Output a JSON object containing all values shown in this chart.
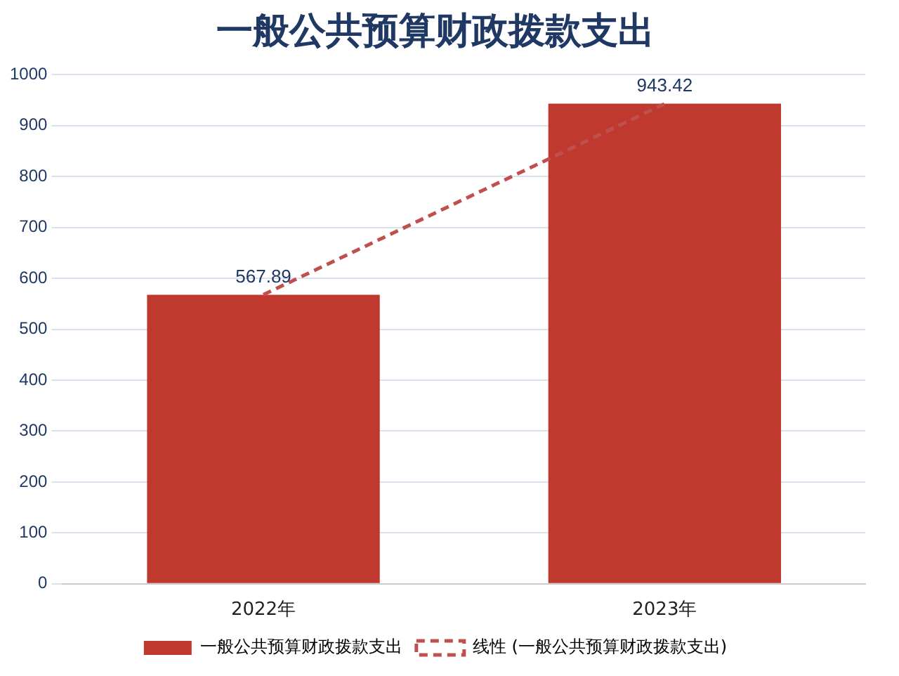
{
  "chart_data": {
    "type": "bar",
    "title": "一般公共预算财政拨款支出",
    "categories": [
      "2022年",
      "2023年"
    ],
    "series": [
      {
        "name": "一般公共预算财政拨款支出",
        "color": "#c0392f",
        "values": [
          567.89,
          943.42
        ],
        "value_labels": [
          "567.89",
          "943.42"
        ]
      },
      {
        "name": "线性 (一般公共预算财政拨款支出)",
        "type": "line",
        "color": "#c0504d",
        "values": [
          568,
          943
        ],
        "line_style": "dashed",
        "marker": "none"
      }
    ],
    "ylim": [
      0,
      1000
    ],
    "yticks": [
      0,
      100,
      200,
      300,
      400,
      500,
      600,
      700,
      800,
      900,
      1000
    ],
    "grid": "y",
    "legend": "bottom"
  }
}
